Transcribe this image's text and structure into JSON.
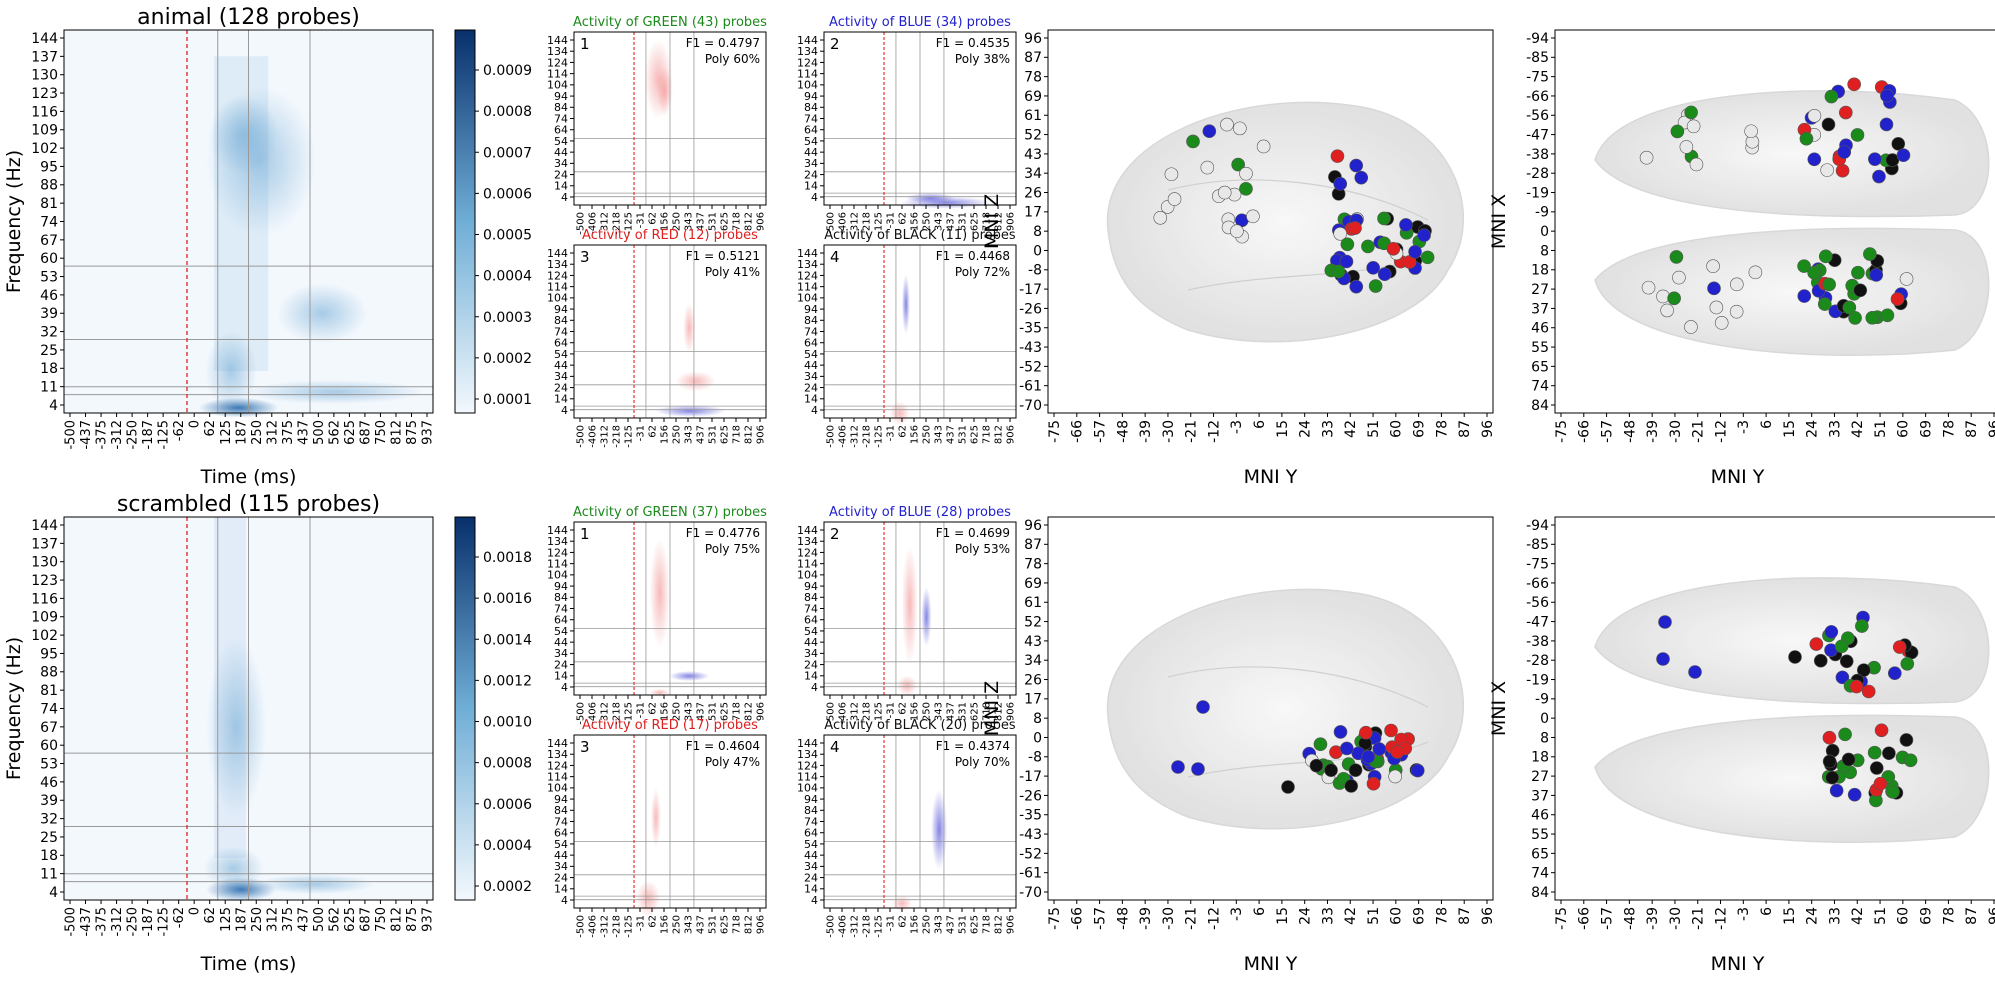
{
  "figure": {
    "rows": [
      {
        "id": "animal",
        "heatmap": {
          "title": "animal (128 probes)",
          "xlabel": "Time (ms)",
          "ylabel": "Frequency (Hz)",
          "colorbar_ticks": [
            "0.0009",
            "0.0008",
            "0.0007",
            "0.0006",
            "0.0005",
            "0.0004",
            "0.0003",
            "0.0002",
            "0.0001"
          ]
        },
        "clusters": [
          {
            "num": "1",
            "title": "Activity of GREEN (43) probes",
            "color": "#1a8a1a",
            "f1": "F1 = 0.4797",
            "poly": "Poly 60%"
          },
          {
            "num": "2",
            "title": "Activity of BLUE (34) probes",
            "color": "#2222cc",
            "f1": "F1 = 0.4535",
            "poly": "Poly 38%"
          },
          {
            "num": "3",
            "title": "Activity of RED (12) probes",
            "color": "#e02020",
            "f1": "F1 = 0.5121",
            "poly": "Poly 41%"
          },
          {
            "num": "4",
            "title": "Activity of BLACK (11) probes",
            "color": "#111111",
            "f1": "F1 = 0.4468",
            "poly": "Poly 72%"
          }
        ]
      },
      {
        "id": "scrambled",
        "heatmap": {
          "title": "scrambled (115 probes)",
          "xlabel": "Time (ms)",
          "ylabel": "Frequency (Hz)",
          "colorbar_ticks": [
            "0.0018",
            "0.0016",
            "0.0014",
            "0.0012",
            "0.0010",
            "0.0008",
            "0.0006",
            "0.0004",
            "0.0002"
          ]
        },
        "clusters": [
          {
            "num": "1",
            "title": "Activity of GREEN (37) probes",
            "color": "#1a8a1a",
            "f1": "F1 = 0.4776",
            "poly": "Poly 75%"
          },
          {
            "num": "2",
            "title": "Activity of BLUE (28) probes",
            "color": "#2222cc",
            "f1": "F1 = 0.4699",
            "poly": "Poly 53%"
          },
          {
            "num": "3",
            "title": "Activity of RED (17) probes",
            "color": "#e02020",
            "f1": "F1 = 0.4604",
            "poly": "Poly 47%"
          },
          {
            "num": "4",
            "title": "Activity of BLACK (20) probes",
            "color": "#111111",
            "f1": "F1 = 0.4374",
            "poly": "Poly 70%"
          }
        ]
      }
    ],
    "brain_axes": {
      "sagittal": {
        "xlabel": "MNI Y",
        "ylabel": "MNI Z"
      },
      "axial": {
        "xlabel": "MNI Y",
        "ylabel": "MNI X"
      }
    }
  },
  "chart_data": {
    "type": "heatmap",
    "freq_ticks": [
      "144",
      "137",
      "130",
      "123",
      "116",
      "109",
      "102",
      "95",
      "88",
      "81",
      "74",
      "67",
      "60",
      "53",
      "46",
      "39",
      "32",
      "25",
      "18",
      "11",
      "4"
    ],
    "time_ticks": [
      "-500",
      "-437",
      "-375",
      "-312",
      "-250",
      "-187",
      "-125",
      "-62",
      "0",
      "62",
      "125",
      "187",
      "250",
      "312",
      "375",
      "437",
      "500",
      "562",
      "625",
      "687",
      "750",
      "812",
      "875",
      "937"
    ],
    "small_freq_ticks": [
      "144",
      "134",
      "124",
      "114",
      "104",
      "94",
      "84",
      "74",
      "64",
      "54",
      "44",
      "34",
      "24",
      "14",
      "4"
    ],
    "small_time_ticks": [
      "-500",
      "-406",
      "-312",
      "-218",
      "-125",
      "-31",
      "62",
      "156",
      "250",
      "343",
      "437",
      "531",
      "625",
      "718",
      "812",
      "906"
    ],
    "time_range_ms": [
      -500,
      1000
    ],
    "freq_range_hz": [
      4,
      150
    ],
    "stimulus_onset_ms": 0,
    "mni_y_ticks": [
      "-75",
      "-66",
      "-57",
      "-48",
      "-39",
      "-30",
      "-21",
      "-12",
      "-3",
      "6",
      "15",
      "24",
      "33",
      "42",
      "51",
      "60",
      "69",
      "78",
      "87",
      "96"
    ],
    "mni_z_ticks": [
      "96",
      "87",
      "78",
      "69",
      "61",
      "52",
      "43",
      "34",
      "26",
      "17",
      "8",
      "0",
      "-8",
      "-17",
      "-26",
      "-35",
      "-43",
      "-52",
      "-61",
      "-70"
    ],
    "mni_x_ticks": [
      "-94",
      "-85",
      "-75",
      "-66",
      "-56",
      "-47",
      "-38",
      "-28",
      "-19",
      "-9",
      "0",
      "8",
      "18",
      "27",
      "37",
      "46",
      "55",
      "65",
      "74",
      "84"
    ],
    "color_legend": {
      "green": "#1a8a1a",
      "blue": "#2222cc",
      "red": "#e02020",
      "black": "#111111",
      "white": "#e8e8e8"
    }
  }
}
